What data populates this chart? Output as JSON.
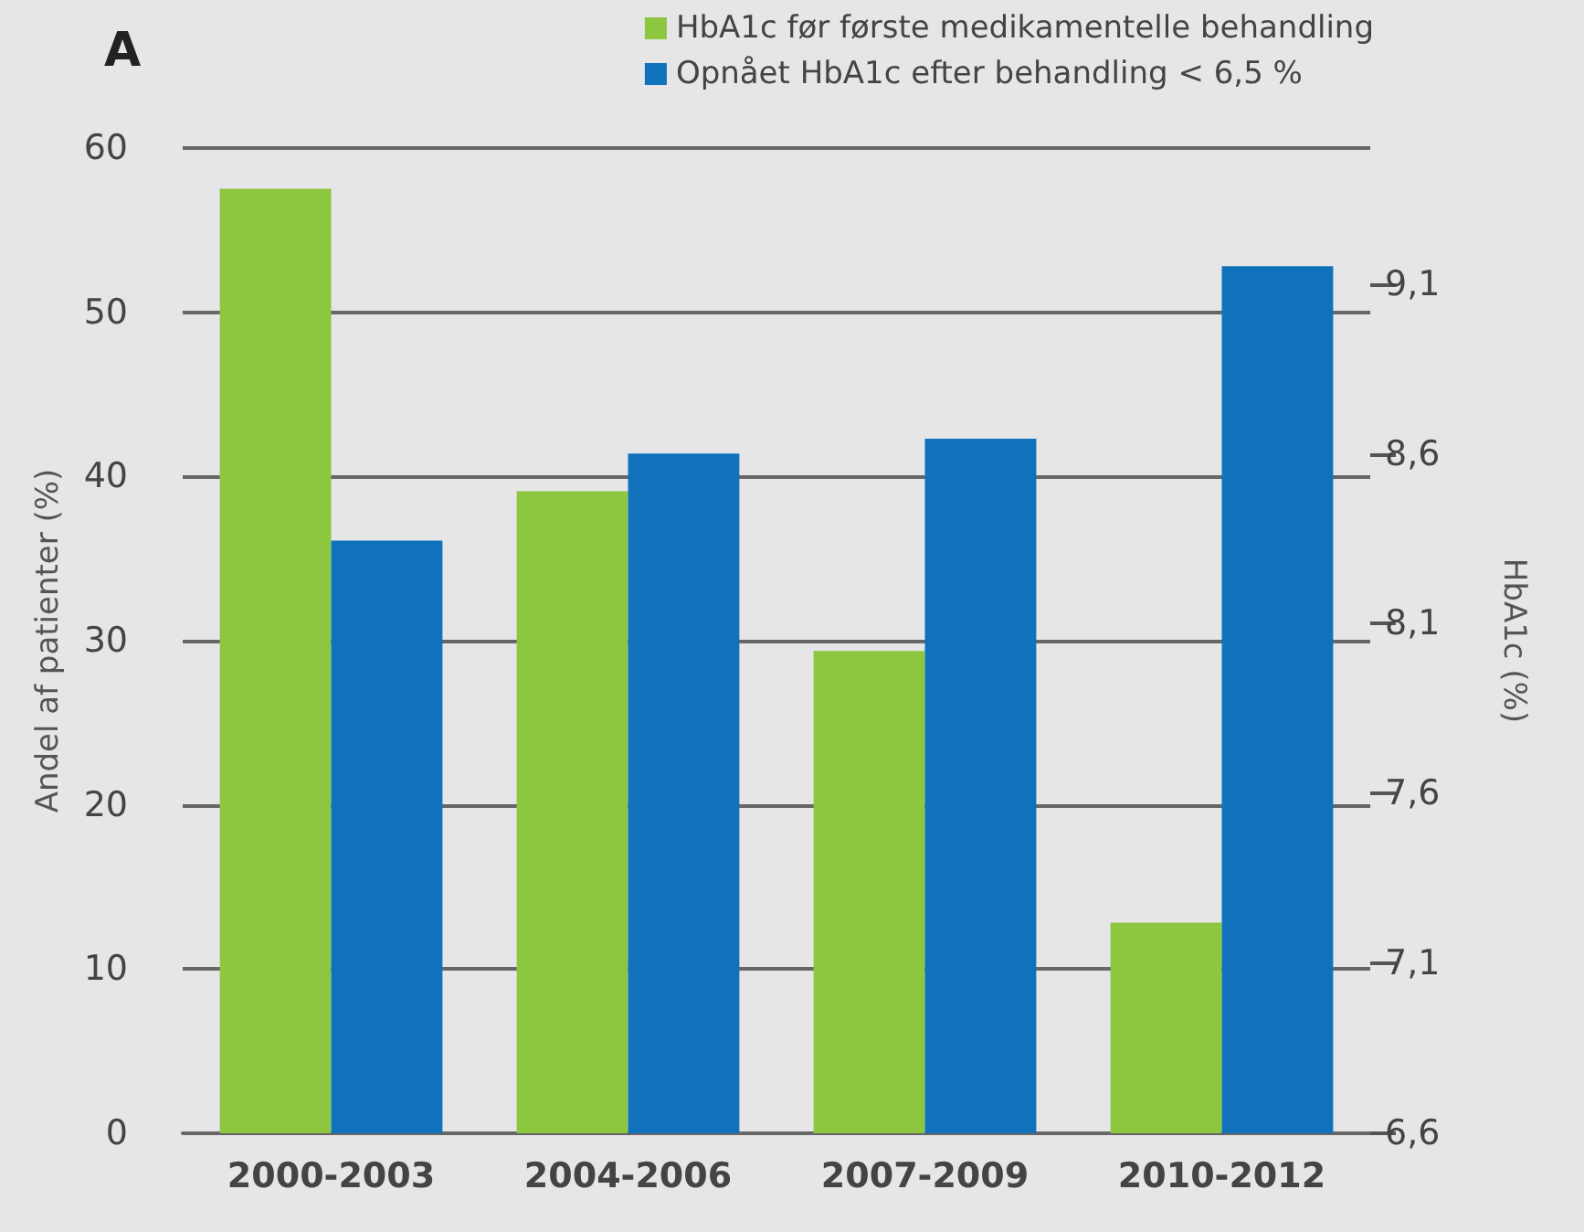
{
  "chart_data": {
    "type": "bar",
    "title": "A",
    "categories": [
      "2000-2003",
      "2004-2006",
      "2007-2009",
      "2010-2012"
    ],
    "series": [
      {
        "name": "HbA1c før første medikamentelle behandling",
        "color": "#8dc63f",
        "values": [
          9.38,
          8.49,
          8.02,
          7.22
        ],
        "axis": "y2"
      },
      {
        "name": "Opnået HbA1c efter behandling < 6,5 %",
        "color": "#0f72bb",
        "values": [
          36.1,
          41.4,
          42.3,
          52.8
        ]
      }
    ],
    "ylabel": "Andel af patienter (%)",
    "y2label": "HbA1c (%)",
    "ylim": [
      0,
      60
    ],
    "yticks": [
      0,
      10,
      20,
      30,
      40,
      50,
      60
    ],
    "y2lim": [
      6.6,
      9.5
    ],
    "y2ticks": [
      {
        "value": 6.6,
        "label": "6,6"
      },
      {
        "value": 7.1,
        "label": "7,1"
      },
      {
        "value": 7.6,
        "label": "7,6"
      },
      {
        "value": 8.1,
        "label": "8,1"
      },
      {
        "value": 8.6,
        "label": "8,6"
      },
      {
        "value": 9.1,
        "label": "9,1"
      }
    ],
    "grid": "y",
    "legend": "top right"
  }
}
